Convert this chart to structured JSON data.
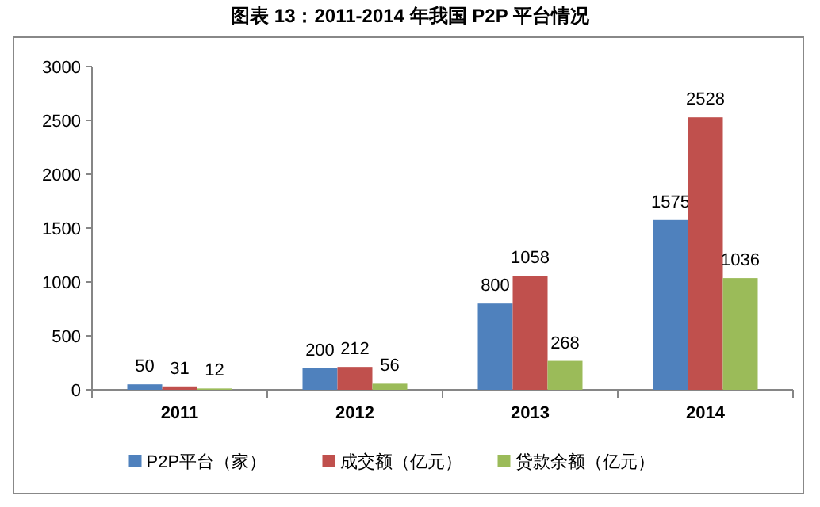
{
  "chart_data": {
    "type": "bar",
    "title": "图表 13：2011-2014 年我国 P2P 平台情况",
    "categories": [
      "2011",
      "2012",
      "2013",
      "2014"
    ],
    "series": [
      {
        "name": "P2P平台（家）",
        "color": "#4f81bd",
        "values": [
          50,
          200,
          800,
          1575
        ]
      },
      {
        "name": "成交额（亿元）",
        "color": "#c0504d",
        "values": [
          31,
          212,
          1058,
          2528
        ]
      },
      {
        "name": "贷款余额（亿元）",
        "color": "#9bbb59",
        "values": [
          12,
          56,
          268,
          1036
        ]
      }
    ],
    "ylim": [
      0,
      3000
    ],
    "yticks": [
      0,
      500,
      1000,
      1500,
      2000,
      2500,
      3000
    ],
    "data_labels": true,
    "legend": "bottom"
  }
}
